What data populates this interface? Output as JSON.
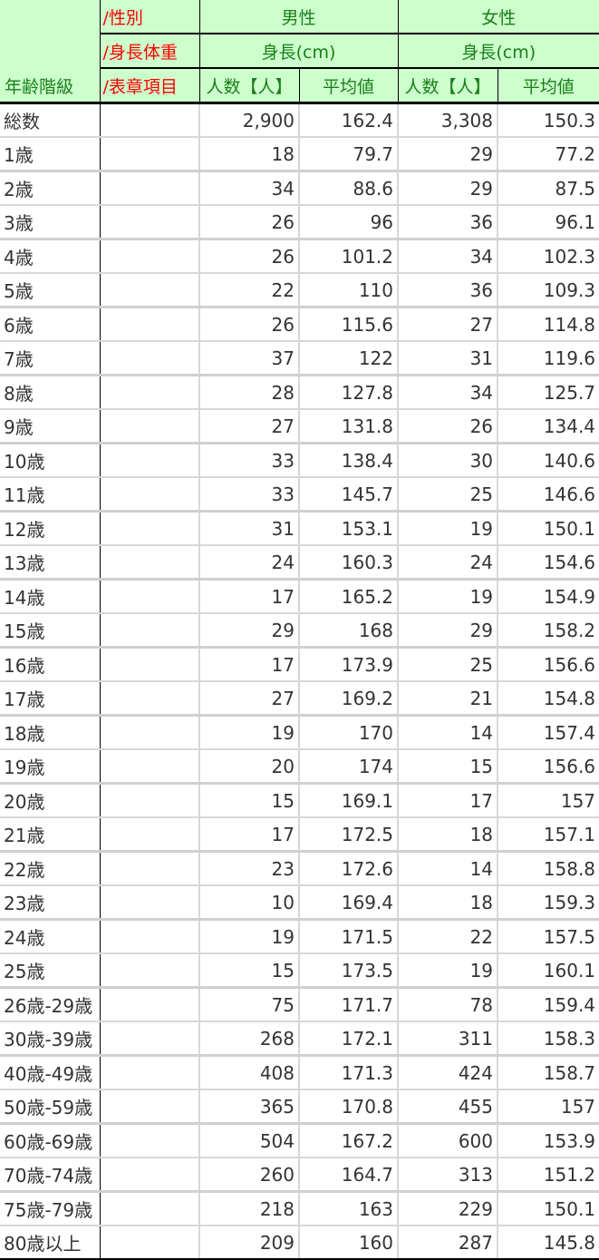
{
  "header": {
    "age_label": "年齢階級",
    "sex_label": "/性別",
    "body_label": "/身長体重",
    "item_label": "/表章項目",
    "male": "男性",
    "female": "女性",
    "male_measure": "身長(cm)",
    "female_measure": "身長(cm)",
    "count_label": "人数【人】",
    "mean_label": "平均値"
  },
  "colors": {
    "header_bg": "#ccffcc",
    "header_text": "#1a7f1a",
    "label_red": "#ff0000"
  },
  "rows": [
    [
      "総数",
      "2,900",
      "162.4",
      "3,308",
      "150.3"
    ],
    [
      "1歳",
      "18",
      "79.7",
      "29",
      "77.2"
    ],
    [
      "2歳",
      "34",
      "88.6",
      "29",
      "87.5"
    ],
    [
      "3歳",
      "26",
      "96",
      "36",
      "96.1"
    ],
    [
      "4歳",
      "26",
      "101.2",
      "34",
      "102.3"
    ],
    [
      "5歳",
      "22",
      "110",
      "36",
      "109.3"
    ],
    [
      "6歳",
      "26",
      "115.6",
      "27",
      "114.8"
    ],
    [
      "7歳",
      "37",
      "122",
      "31",
      "119.6"
    ],
    [
      "8歳",
      "28",
      "127.8",
      "34",
      "125.7"
    ],
    [
      "9歳",
      "27",
      "131.8",
      "26",
      "134.4"
    ],
    [
      "10歳",
      "33",
      "138.4",
      "30",
      "140.6"
    ],
    [
      "11歳",
      "33",
      "145.7",
      "25",
      "146.6"
    ],
    [
      "12歳",
      "31",
      "153.1",
      "19",
      "150.1"
    ],
    [
      "13歳",
      "24",
      "160.3",
      "24",
      "154.6"
    ],
    [
      "14歳",
      "17",
      "165.2",
      "19",
      "154.9"
    ],
    [
      "15歳",
      "29",
      "168",
      "29",
      "158.2"
    ],
    [
      "16歳",
      "17",
      "173.9",
      "25",
      "156.6"
    ],
    [
      "17歳",
      "27",
      "169.2",
      "21",
      "154.8"
    ],
    [
      "18歳",
      "19",
      "170",
      "14",
      "157.4"
    ],
    [
      "19歳",
      "20",
      "174",
      "15",
      "156.6"
    ],
    [
      "20歳",
      "15",
      "169.1",
      "17",
      "157"
    ],
    [
      "21歳",
      "17",
      "172.5",
      "18",
      "157.1"
    ],
    [
      "22歳",
      "23",
      "172.6",
      "14",
      "158.8"
    ],
    [
      "23歳",
      "10",
      "169.4",
      "18",
      "159.3"
    ],
    [
      "24歳",
      "19",
      "171.5",
      "22",
      "157.5"
    ],
    [
      "25歳",
      "15",
      "173.5",
      "19",
      "160.1"
    ],
    [
      "26歳-29歳",
      "75",
      "171.7",
      "78",
      "159.4"
    ],
    [
      "30歳-39歳",
      "268",
      "172.1",
      "311",
      "158.3"
    ],
    [
      "40歳-49歳",
      "408",
      "171.3",
      "424",
      "158.7"
    ],
    [
      "50歳-59歳",
      "365",
      "170.8",
      "455",
      "157"
    ],
    [
      "60歳-69歳",
      "504",
      "167.2",
      "600",
      "153.9"
    ],
    [
      "70歳-74歳",
      "260",
      "164.7",
      "313",
      "151.2"
    ],
    [
      "75歳-79歳",
      "218",
      "163",
      "229",
      "150.1"
    ],
    [
      "80歳以上",
      "209",
      "160",
      "287",
      "145.8"
    ]
  ]
}
